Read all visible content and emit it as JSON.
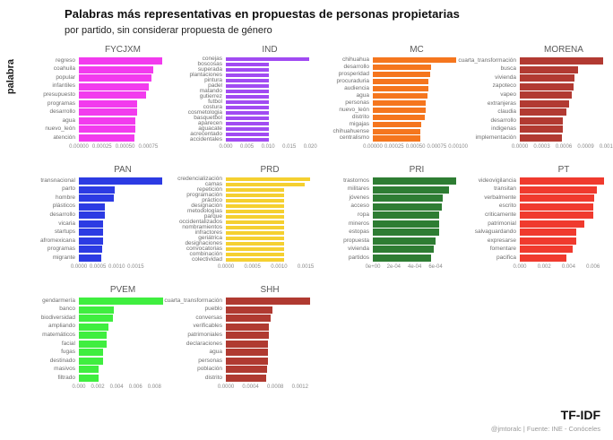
{
  "header": {
    "title": "Palabras más representativas en propuestas de personas propietarias",
    "subtitle": "por partido, sin considerar propuesta de género"
  },
  "footer": {
    "method": "TF-IDF",
    "attribution": "@jmtoralc | Fuente: INE - Conóceles"
  },
  "chart_data": {
    "type": "bar",
    "orientation": "horizontal",
    "facet_by": "partido",
    "title": "Palabras más representativas en propuestas de personas propietarias",
    "subtitle": "por partido, sin considerar propuesta de género",
    "ylabel": "palabra",
    "xlabel": "",
    "legend": "none",
    "panels": [
      {
        "party": "FYCJXM",
        "color": "#f23bee",
        "words": [
          "regreso",
          "coahuila",
          "popular",
          "infantiles",
          "presupuesto",
          "programas",
          "desarrollo",
          "agua",
          "nuevo_león",
          "atención"
        ],
        "values": [
          0.0009,
          0.0008,
          0.00079,
          0.00076,
          0.00073,
          0.00063,
          0.00063,
          0.00061,
          0.00061,
          0.0006
        ],
        "xticks": [
          "0.00000",
          "0.00025",
          "0.00050",
          "0.00075"
        ],
        "xtick_values": [
          0,
          0.00025,
          0.0005,
          0.00075
        ],
        "xmax": 0.00095
      },
      {
        "party": "IND",
        "color": "#a14bf2",
        "words": [
          "conejas",
          "boscosas",
          "superada",
          "plantaciones",
          "pintura",
          "padel",
          "matando",
          "gutierrez",
          "futbol",
          "costura",
          "cosmetologia",
          "basquetbol",
          "aparecen",
          "aguacate",
          "acrecentado",
          "accidentales"
        ],
        "values": [
          0.0198,
          0.0101,
          0.0101,
          0.0101,
          0.0101,
          0.0101,
          0.0101,
          0.0101,
          0.0101,
          0.0101,
          0.0101,
          0.0101,
          0.0101,
          0.0101,
          0.0101,
          0.0101
        ],
        "xticks": [
          "0.000",
          "0.005",
          "0.010",
          "0.015",
          "0.020"
        ],
        "xtick_values": [
          0,
          0.005,
          0.01,
          0.015,
          0.02
        ],
        "xmax": 0.0208
      },
      {
        "party": "MC",
        "color": "#f5761e",
        "words": [
          "chihuahua",
          "desarrollo",
          "prosperidad",
          "procuraduria",
          "audiencia",
          "agua",
          "personas",
          "nuevo_león",
          "distrito",
          "migajas",
          "chihuahuense",
          "centralismo"
        ],
        "values": [
          0.00098,
          0.00068,
          0.00067,
          0.00065,
          0.00065,
          0.00064,
          0.00062,
          0.00062,
          0.00061,
          0.00057,
          0.00056,
          0.00056
        ],
        "xticks": [
          "0.00000",
          "0.00025",
          "0.00050",
          "0.00075",
          "0.00100"
        ],
        "xtick_values": [
          0,
          0.00025,
          0.0005,
          0.00075,
          0.001
        ],
        "xmax": 0.00103
      },
      {
        "party": "MORENA",
        "color": "#b23a32",
        "words": [
          "cuarta_transformación",
          "busca",
          "vivienda",
          "zapoteco",
          "vapeo",
          "extranjeras",
          "claudia",
          "desarrollo",
          "indigenas",
          "implementación"
        ],
        "values": [
          0.00114,
          0.0008,
          0.00075,
          0.00073,
          0.00071,
          0.00067,
          0.00064,
          0.00059,
          0.00059,
          0.00058
        ],
        "xticks": [
          "0.0000",
          "0.0003",
          "0.0006",
          "0.0009",
          "0.0012"
        ],
        "xtick_values": [
          0,
          0.0003,
          0.0006,
          0.0009,
          0.0012
        ],
        "xmax": 0.0012
      },
      {
        "party": "PAN",
        "color": "#2c3be3",
        "words": [
          "transnacional",
          "parto",
          "hombre",
          "plásticos",
          "desarrollo",
          "vicaria",
          "startups",
          "afromexicana",
          "programas",
          "migrante"
        ],
        "values": [
          0.0022,
          0.00094,
          0.00093,
          0.00069,
          0.00068,
          0.00064,
          0.00064,
          0.00064,
          0.00061,
          0.00059
        ],
        "xticks": [
          "0.0000",
          "0.0005",
          "0.0010",
          "0.0015"
        ],
        "xtick_values": [
          0,
          0.0005,
          0.001,
          0.0015
        ],
        "xmax": 0.00232
      },
      {
        "party": "PRD",
        "color": "#f5d030",
        "words": [
          "credencialización",
          "camas",
          "repetición",
          "programación",
          "práctico",
          "designación",
          "metodologías",
          "parque",
          "occidentalizados",
          "nombramientos",
          "infractores",
          "geriátrica",
          "designaciones",
          "convocatorias",
          "combinación",
          "colectividad"
        ],
        "values": [
          0.00158,
          0.00148,
          0.0011,
          0.0011,
          0.00109,
          0.00109,
          0.00109,
          0.00109,
          0.00109,
          0.00109,
          0.00109,
          0.00109,
          0.00109,
          0.00109,
          0.00109,
          0.00109
        ],
        "xticks": [
          "0.0000",
          "0.0005",
          "0.0010",
          "0.0015"
        ],
        "xtick_values": [
          0,
          0.0005,
          0.001,
          0.0015
        ],
        "xmax": 0.00165
      },
      {
        "party": "PRI",
        "color": "#2e7d33",
        "words": [
          "trastornos",
          "militares",
          "jóvenes",
          "acceso",
          "ropa",
          "mineros",
          "estopas",
          "propuesta",
          "vivienda",
          "partidos"
        ],
        "values": [
          0.0008,
          0.00073,
          0.00067,
          0.00066,
          0.00063,
          0.00063,
          0.00063,
          0.0006,
          0.00058,
          0.00056
        ],
        "xticks": [
          "0e+00",
          "2e-04",
          "4e-04",
          "6e-04"
        ],
        "xtick_values": [
          0,
          0.0002,
          0.0004,
          0.0006
        ],
        "xmax": 0.00084
      },
      {
        "party": "PT",
        "color": "#f03a2e",
        "words": [
          "videovigilancia",
          "transitan",
          "verbalmente",
          "escrito",
          "criticamente",
          "patrimonial",
          "salvaguardando",
          "expresarse",
          "fomentare",
          "pacifica"
        ],
        "values": [
          0.0069,
          0.0063,
          0.0061,
          0.006,
          0.006,
          0.0053,
          0.0046,
          0.0046,
          0.0043,
          0.0038
        ],
        "xticks": [
          "0.000",
          "0.002",
          "0.004",
          "0.006"
        ],
        "xtick_values": [
          0,
          0.002,
          0.004,
          0.006
        ],
        "xmax": 0.0072
      },
      {
        "party": "PVEM",
        "color": "#3fee3f",
        "words": [
          "gendarmería",
          "banco",
          "biodiversidad",
          "ampliando",
          "matemáticos",
          "facial",
          "fugas",
          "destinado",
          "masivos",
          "filtrado"
        ],
        "values": [
          0.0089,
          0.0037,
          0.0036,
          0.0031,
          0.0029,
          0.0029,
          0.0026,
          0.0026,
          0.0021,
          0.0021
        ],
        "xticks": [
          "0.000",
          "0.002",
          "0.004",
          "0.006",
          "0.008"
        ],
        "xtick_values": [
          0,
          0.002,
          0.004,
          0.006,
          0.008
        ],
        "xmax": 0.0093
      },
      {
        "party": "SHH",
        "color": "#b03a31",
        "words": [
          "cuarta_transformación",
          "pueblo",
          "conversas",
          "verificables",
          "patrimoniales",
          "declaraciones",
          "agua",
          "personas",
          "población",
          "distrito"
        ],
        "values": [
          0.00136,
          0.00076,
          0.00073,
          0.00069,
          0.00069,
          0.00068,
          0.00068,
          0.00068,
          0.00067,
          0.00065
        ],
        "xticks": [
          "0.0000",
          "0.0004",
          "0.0008",
          "0.0012"
        ],
        "xtick_values": [
          0,
          0.0004,
          0.0008,
          0.0012
        ],
        "xmax": 0.00142
      }
    ]
  }
}
